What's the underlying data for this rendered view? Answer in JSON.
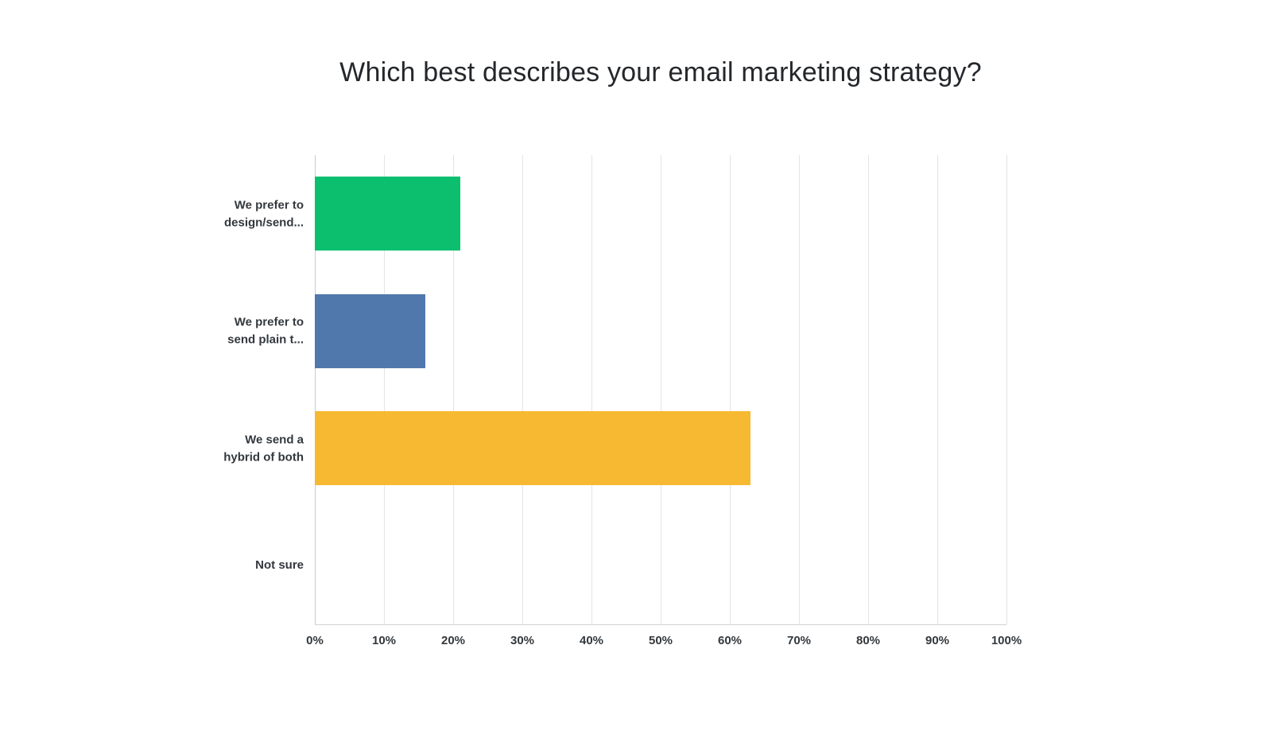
{
  "page": {
    "background_color": "#ffffff"
  },
  "chart_data": {
    "type": "bar",
    "orientation": "horizontal",
    "title": "Which best describes your email marketing strategy?",
    "categories": [
      "We prefer to\ndesign/send...",
      "We prefer to\nsend plain t...",
      "We send a\nhybrid of both",
      "Not sure"
    ],
    "values": [
      21,
      16,
      63,
      0
    ],
    "colors": [
      "#0bbf6f",
      "#5078ac",
      "#f7b931",
      "#cccccc"
    ],
    "xlabel": "",
    "ylabel": "",
    "xlim": [
      0,
      100
    ],
    "x_ticks": [
      "0%",
      "10%",
      "20%",
      "30%",
      "40%",
      "50%",
      "60%",
      "70%",
      "80%",
      "90%",
      "100%"
    ],
    "grid": true,
    "legend": false,
    "gridline_color": "#e4e4e4",
    "axis_label_color": "#33383d"
  }
}
